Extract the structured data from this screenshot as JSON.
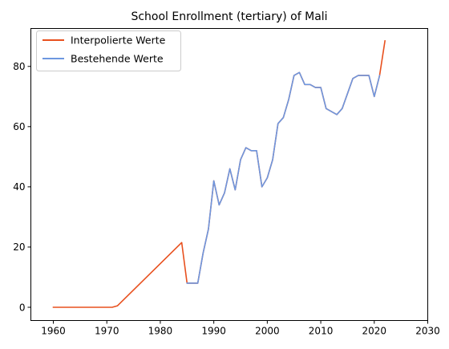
{
  "chart_data": {
    "type": "line",
    "title": "School Enrollment (tertiary) of Mali",
    "xlabel": "",
    "ylabel": "",
    "xlim": [
      1955.8,
      2030
    ],
    "ylim": [
      -4.4,
      92.6
    ],
    "xticks": [
      1960,
      1970,
      1980,
      1990,
      2000,
      2010,
      2020,
      2030
    ],
    "yticks": [
      0,
      20,
      40,
      60,
      80
    ],
    "grid": false,
    "legend_position": "top-left",
    "series": [
      {
        "name": "Interpolierte Werte",
        "color": "#e8501e",
        "x": [
          1960,
          1971,
          1972,
          1984,
          1985,
          1987,
          1988,
          1989,
          1990,
          1991,
          1992,
          1993,
          1994,
          1995,
          1996,
          1997,
          1998,
          1999,
          2000,
          2001,
          2002,
          2003,
          2004,
          2005,
          2006,
          2007,
          2008,
          2009,
          2010,
          2011,
          2012,
          2013,
          2014,
          2015,
          2016,
          2017,
          2018,
          2019,
          2020,
          2021,
          2022
        ],
        "y": [
          0,
          0,
          0.5,
          21.5,
          8,
          8,
          18,
          26,
          42,
          34,
          38,
          46,
          39,
          49,
          53,
          52,
          52,
          40,
          43,
          49,
          61,
          63,
          69,
          77,
          78,
          74,
          74,
          73,
          73,
          66,
          65,
          64,
          66,
          71,
          76,
          77,
          77,
          77,
          70,
          77,
          88.5
        ]
      },
      {
        "name": "Bestehende Werte",
        "color": "#6d97e0",
        "x": [
          1985,
          1987,
          1988,
          1989,
          1990,
          1991,
          1992,
          1993,
          1994,
          1995,
          1996,
          1997,
          1998,
          1999,
          2000,
          2001,
          2002,
          2003,
          2004,
          2005,
          2006,
          2007,
          2008,
          2009,
          2010,
          2011,
          2012,
          2013,
          2014,
          2015,
          2016,
          2017,
          2018,
          2019,
          2020,
          2021
        ],
        "y": [
          8,
          8,
          18,
          26,
          42,
          34,
          38,
          46,
          39,
          49,
          53,
          52,
          52,
          40,
          43,
          49,
          61,
          63,
          69,
          77,
          78,
          74,
          74,
          73,
          73,
          66,
          65,
          64,
          66,
          71,
          76,
          77,
          77,
          77,
          70,
          77
        ]
      }
    ]
  }
}
